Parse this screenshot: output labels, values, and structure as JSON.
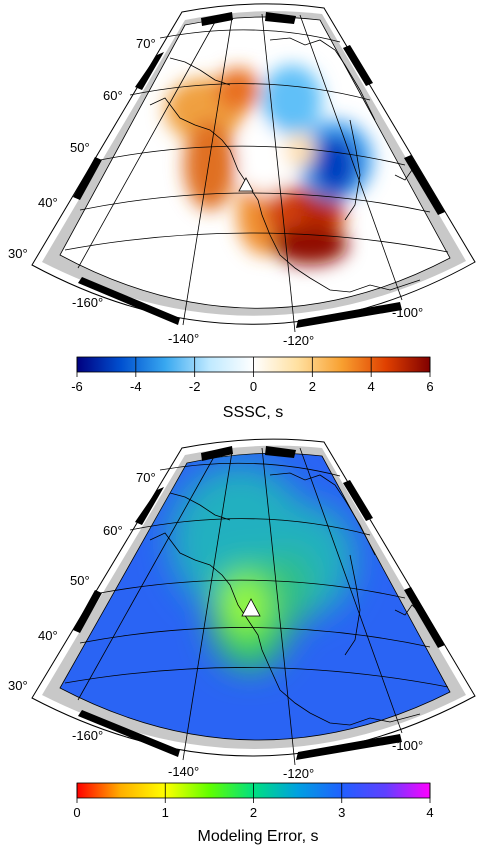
{
  "panels": [
    {
      "id": "sssc",
      "lat_labels": [
        "70°",
        "60°",
        "50°",
        "40°",
        "30°"
      ],
      "lon_labels": [
        "-160°",
        "-140°",
        "-120°",
        "-100°"
      ],
      "colorbar": {
        "title": "SSSC, s",
        "ticks": [
          "-6",
          "-4",
          "-2",
          "0",
          "2",
          "4",
          "6"
        ],
        "range": [
          -6,
          6
        ],
        "colors": [
          "#000080",
          "#0050d0",
          "#38a8f0",
          "#bfe9ff",
          "#ffffff",
          "#ffe0a0",
          "#f8a030",
          "#e04000",
          "#800000"
        ]
      },
      "station_marker": "white-triangle"
    },
    {
      "id": "modeling-error",
      "lat_labels": [
        "70°",
        "60°",
        "50°",
        "40°",
        "30°"
      ],
      "lon_labels": [
        "-160°",
        "-140°",
        "-120°",
        "-100°"
      ],
      "colorbar": {
        "title": "Modeling Error, s",
        "ticks": [
          "0",
          "1",
          "2",
          "3",
          "4"
        ],
        "range": [
          0,
          4
        ],
        "colors": [
          "#ff0000",
          "#ffb000",
          "#ffff00",
          "#60ff00",
          "#00e080",
          "#00a0e0",
          "#2060ff",
          "#6040ff",
          "#ff00ff"
        ]
      },
      "station_marker": "white-triangle"
    }
  ]
}
